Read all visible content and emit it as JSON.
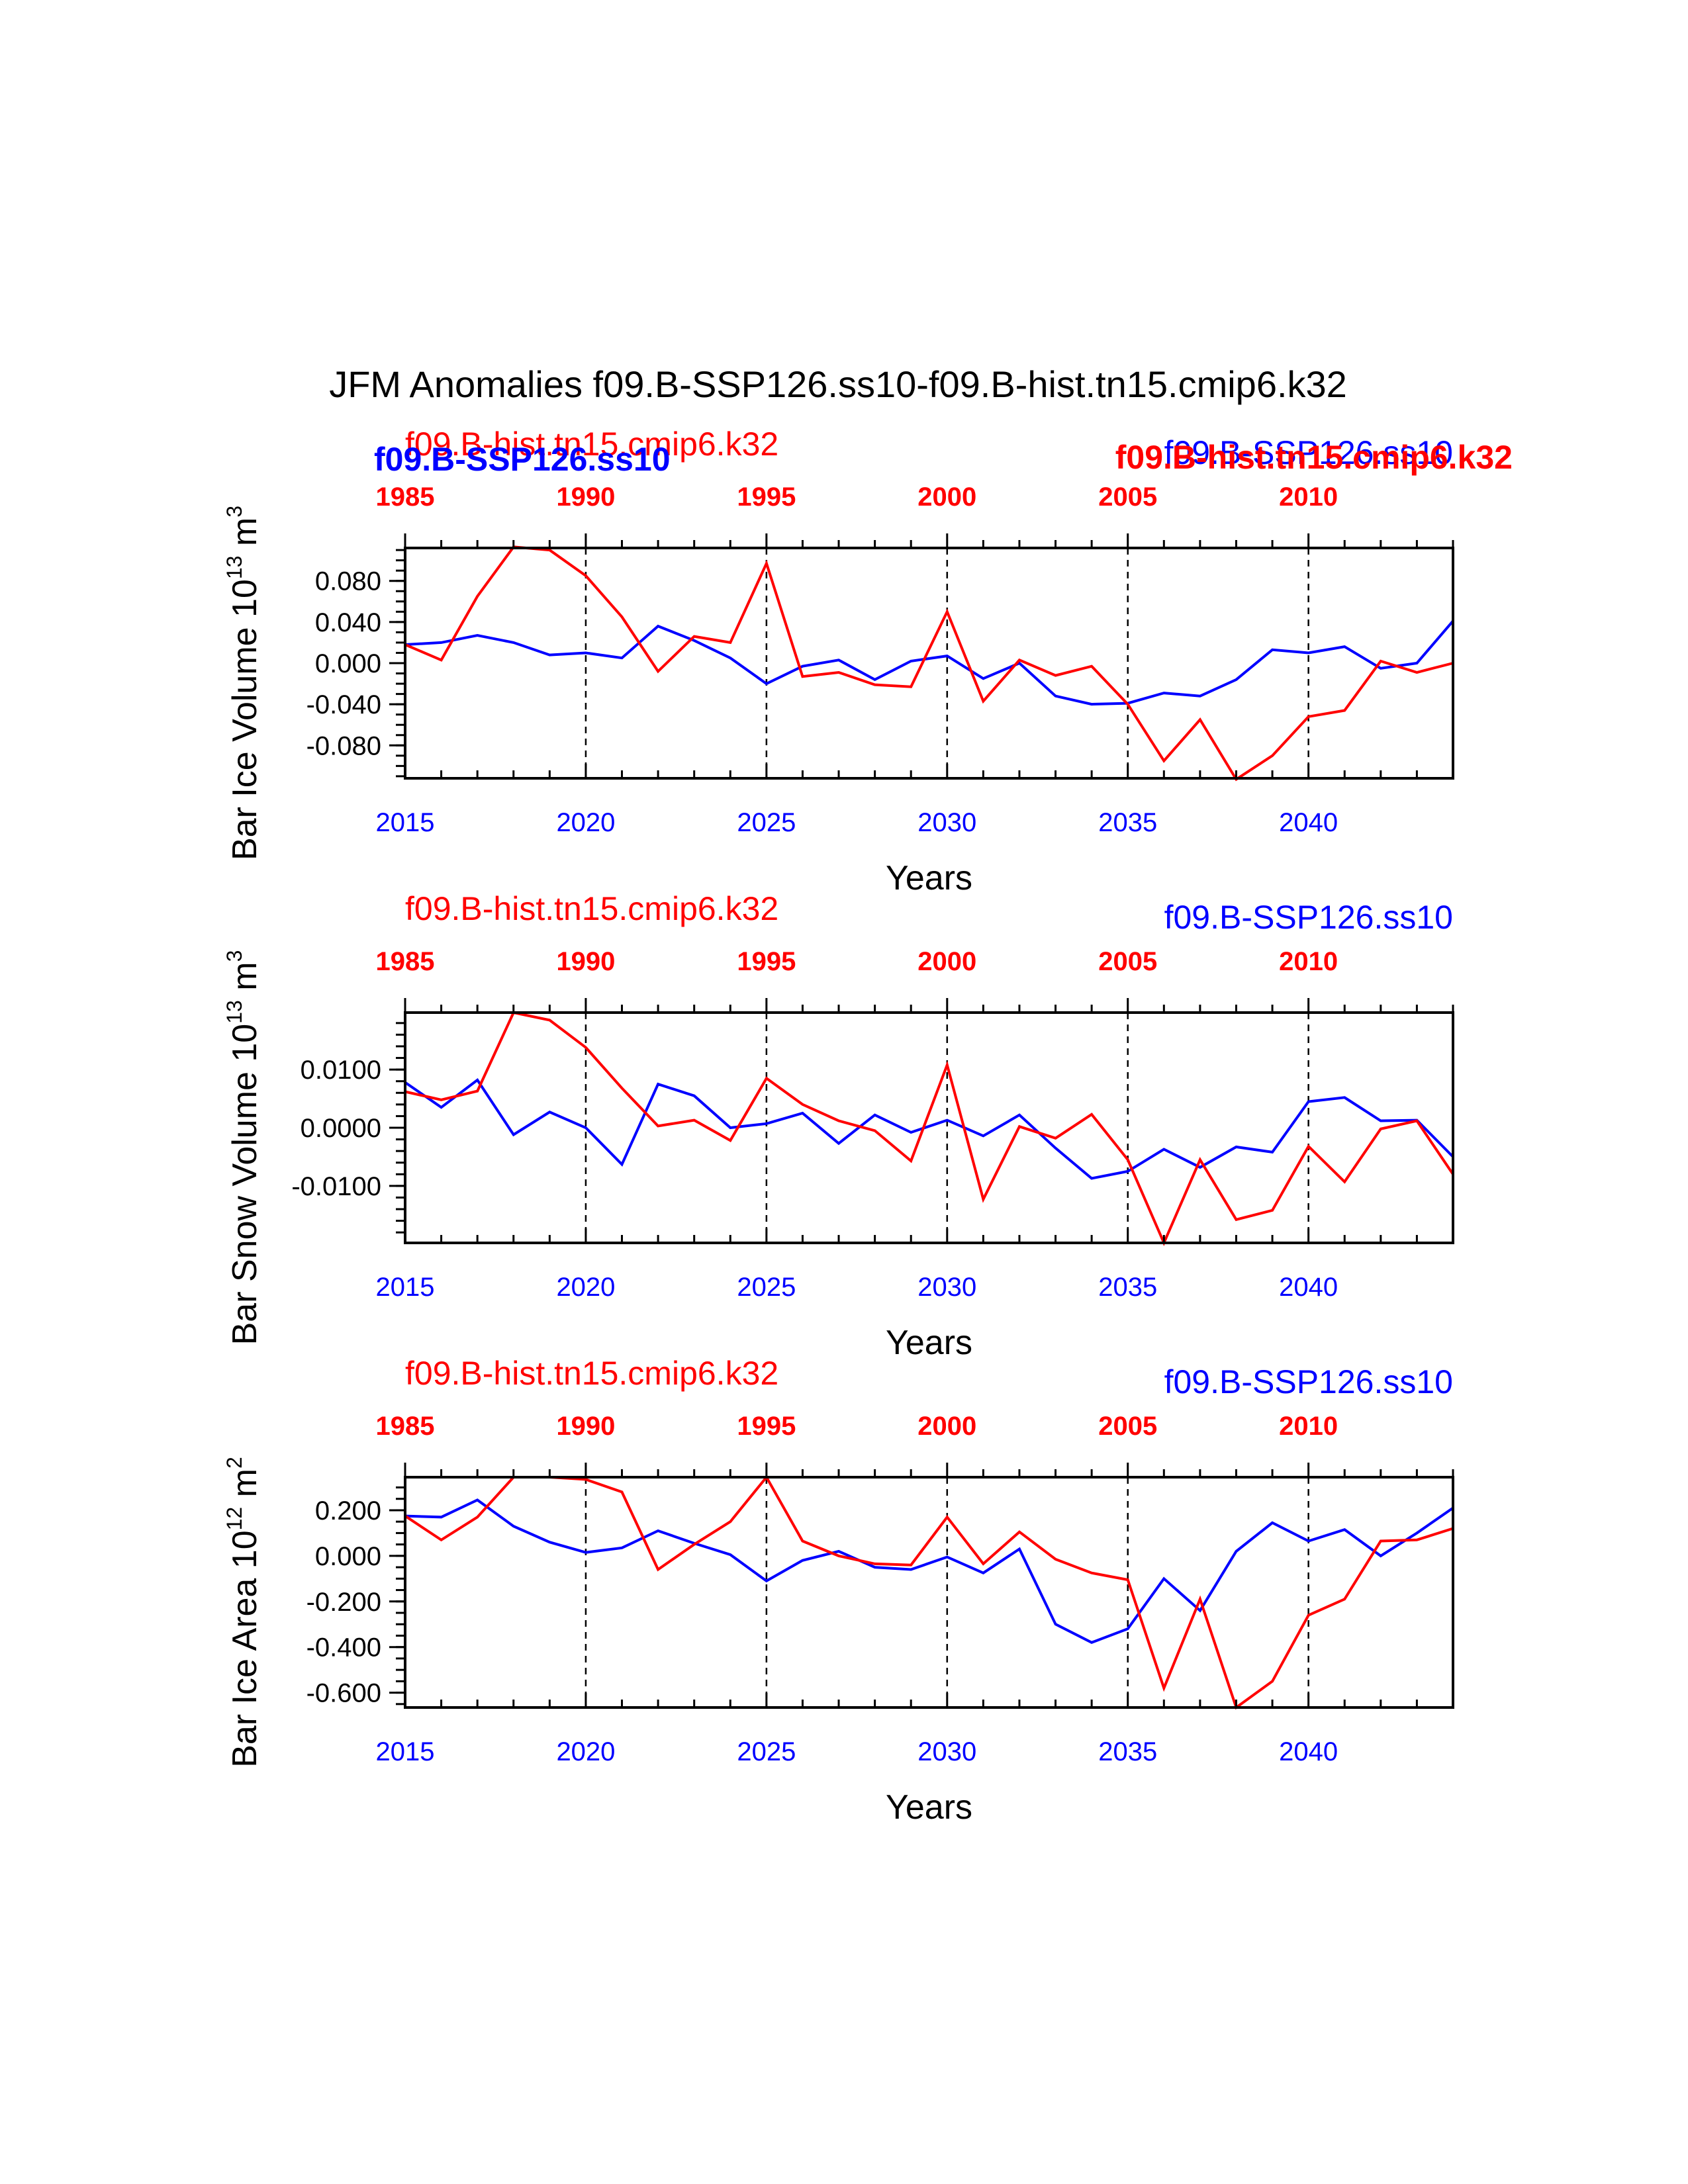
{
  "title": "JFM Anomalies f09.B-SSP126.ss10-f09.B-hist.tn15.cmip6.k32",
  "colors": {
    "ssp": "#0000ff",
    "hist": "#ff0000",
    "axis": "#000000"
  },
  "chart_data": [
    {
      "type": "line",
      "ylabel_main": "Bar Ice Volume 10",
      "ylabel_exp": "13",
      "ylabel_unit": " m",
      "ylabel_unit_exp": "3",
      "xlabel": "Years",
      "ylim": [
        -0.112,
        0.112
      ],
      "yticks": [
        -0.08,
        -0.04,
        0.0,
        0.04,
        0.08
      ],
      "ytick_labels": [
        "-0.080",
        "-0.040",
        "0.000",
        "0.040",
        "0.080"
      ],
      "yminor_step": 0.01,
      "bottom_axis": {
        "range": [
          2015,
          2044
        ],
        "ticks": [
          2015,
          2020,
          2025,
          2030,
          2035,
          2040
        ],
        "labels": [
          "2015",
          "2020",
          "2025",
          "2030",
          "2035",
          "2040"
        ]
      },
      "top_axis": {
        "range": [
          1985,
          2014
        ],
        "ticks": [
          1985,
          1990,
          1995,
          2000,
          2005,
          2010
        ],
        "labels": [
          "1985",
          "1990",
          "1995",
          "2000",
          "2005",
          "2010"
        ]
      },
      "legend_top_left": {
        "text": "f09.B-hist.tn15.cmip6.k32",
        "color": "#ff0000"
      },
      "legend_top_right": {
        "text": "f09.B-SSP126.ss10",
        "color": "#0000ff"
      },
      "overlay_left": {
        "text": "f09.B-SSP126.ss10",
        "color": "#0000ff"
      },
      "overlay_right": {
        "text": "f09.B-hist.tn15.cmip6.k32",
        "color": "#ff0000"
      },
      "series": [
        {
          "name": "f09.B-SSP126.ss10",
          "color": "#0000ff",
          "x": [
            2015,
            2016,
            2017,
            2018,
            2019,
            2020,
            2021,
            2022,
            2023,
            2024,
            2025,
            2026,
            2027,
            2028,
            2029,
            2030,
            2031,
            2032,
            2033,
            2034,
            2035,
            2036,
            2037,
            2038,
            2039,
            2040,
            2041,
            2042,
            2043,
            2044
          ],
          "values": [
            0.018,
            0.02,
            0.027,
            0.02,
            0.008,
            0.01,
            0.005,
            0.036,
            0.022,
            0.005,
            -0.02,
            -0.003,
            0.003,
            -0.016,
            0.002,
            0.007,
            -0.015,
            0.0,
            -0.032,
            -0.04,
            -0.039,
            -0.029,
            -0.032,
            -0.016,
            0.013,
            0.01,
            0.016,
            -0.005,
            0.0,
            0.041
          ]
        },
        {
          "name": "f09.B-hist.tn15.cmip6.k32",
          "color": "#ff0000",
          "x": [
            2015,
            2016,
            2017,
            2018,
            2019,
            2020,
            2021,
            2022,
            2023,
            2024,
            2025,
            2026,
            2027,
            2028,
            2029,
            2030,
            2031,
            2032,
            2033,
            2034,
            2035,
            2036,
            2037,
            2038,
            2039,
            2040,
            2041,
            2042,
            2043,
            2044
          ],
          "values": [
            0.018,
            0.003,
            0.065,
            0.113,
            0.11,
            0.085,
            0.045,
            -0.008,
            0.026,
            0.02,
            0.097,
            -0.013,
            -0.009,
            -0.021,
            -0.023,
            0.05,
            -0.037,
            0.003,
            -0.012,
            -0.003,
            -0.04,
            -0.095,
            -0.055,
            -0.113,
            -0.09,
            -0.052,
            -0.046,
            0.002,
            -0.009,
            0.0
          ]
        }
      ]
    },
    {
      "type": "line",
      "ylabel_main": "Bar Snow Volume 10",
      "ylabel_exp": "13",
      "ylabel_unit": " m",
      "ylabel_unit_exp": "3",
      "xlabel": "Years",
      "ylim": [
        -0.0198,
        0.0198
      ],
      "yticks": [
        -0.01,
        0.0,
        0.01
      ],
      "ytick_labels": [
        "-0.0100",
        "0.0000",
        "0.0100"
      ],
      "yminor_step": 0.002,
      "bottom_axis": {
        "range": [
          2015,
          2044
        ],
        "ticks": [
          2015,
          2020,
          2025,
          2030,
          2035,
          2040
        ],
        "labels": [
          "2015",
          "2020",
          "2025",
          "2030",
          "2035",
          "2040"
        ]
      },
      "top_axis": {
        "range": [
          1985,
          2014
        ],
        "ticks": [
          1985,
          1990,
          1995,
          2000,
          2005,
          2010
        ],
        "labels": [
          "1985",
          "1990",
          "1995",
          "2000",
          "2005",
          "2010"
        ]
      },
      "legend_top_left": {
        "text": "f09.B-hist.tn15.cmip6.k32",
        "color": "#ff0000"
      },
      "legend_top_right": {
        "text": "f09.B-SSP126.ss10",
        "color": "#0000ff"
      },
      "series": [
        {
          "name": "f09.B-SSP126.ss10",
          "color": "#0000ff",
          "x": [
            2015,
            2016,
            2017,
            2018,
            2019,
            2020,
            2021,
            2022,
            2023,
            2024,
            2025,
            2026,
            2027,
            2028,
            2029,
            2030,
            2031,
            2032,
            2033,
            2034,
            2035,
            2036,
            2037,
            2038,
            2039,
            2040,
            2041,
            2042,
            2043,
            2044
          ],
          "values": [
            0.0078,
            0.0035,
            0.0082,
            -0.0012,
            0.0027,
            0.0,
            -0.0063,
            0.0075,
            0.0055,
            0.0,
            0.0007,
            0.0025,
            -0.0027,
            0.0022,
            -0.0008,
            0.0013,
            -0.0014,
            0.0022,
            -0.0035,
            -0.0087,
            -0.0075,
            -0.0037,
            -0.0068,
            -0.0033,
            -0.0042,
            0.0045,
            0.0052,
            0.0012,
            0.0013,
            -0.005
          ]
        },
        {
          "name": "f09.B-hist.tn15.cmip6.k32",
          "color": "#ff0000",
          "x": [
            2015,
            2016,
            2017,
            2018,
            2019,
            2020,
            2021,
            2022,
            2023,
            2024,
            2025,
            2026,
            2027,
            2028,
            2029,
            2030,
            2031,
            2032,
            2033,
            2034,
            2035,
            2036,
            2037,
            2038,
            2039,
            2040,
            2041,
            2042,
            2043,
            2044
          ],
          "values": [
            0.0062,
            0.0048,
            0.0063,
            0.0198,
            0.0185,
            0.0138,
            0.0068,
            0.0003,
            0.0013,
            -0.0022,
            0.0085,
            0.004,
            0.0012,
            -0.0005,
            -0.0057,
            0.0108,
            -0.0123,
            0.0002,
            -0.0018,
            0.0023,
            -0.0055,
            -0.0198,
            -0.0055,
            -0.0158,
            -0.0142,
            -0.0032,
            -0.0093,
            -0.0002,
            0.0012,
            -0.008
          ]
        }
      ]
    },
    {
      "type": "line",
      "ylabel_main": "Bar Ice Area 10",
      "ylabel_exp": "12",
      "ylabel_unit": " m",
      "ylabel_unit_exp": "2",
      "xlabel": "Years",
      "ylim": [
        -0.665,
        0.345
      ],
      "yticks": [
        -0.6,
        -0.4,
        -0.2,
        0.0,
        0.2
      ],
      "ytick_labels": [
        "-0.600",
        "-0.400",
        "-0.200",
        "0.000",
        "0.200"
      ],
      "yminor_step": 0.05,
      "bottom_axis": {
        "range": [
          2015,
          2044
        ],
        "ticks": [
          2015,
          2020,
          2025,
          2030,
          2035,
          2040
        ],
        "labels": [
          "2015",
          "2020",
          "2025",
          "2030",
          "2035",
          "2040"
        ]
      },
      "top_axis": {
        "range": [
          1985,
          2014
        ],
        "ticks": [
          1985,
          1990,
          1995,
          2000,
          2005,
          2010
        ],
        "labels": [
          "1985",
          "1990",
          "1995",
          "2000",
          "2005",
          "2010"
        ]
      },
      "legend_top_left": {
        "text": "f09.B-hist.tn15.cmip6.k32",
        "color": "#ff0000"
      },
      "legend_top_right": {
        "text": "f09.B-SSP126.ss10",
        "color": "#0000ff"
      },
      "series": [
        {
          "name": "f09.B-SSP126.ss10",
          "color": "#0000ff",
          "x": [
            2015,
            2016,
            2017,
            2018,
            2019,
            2020,
            2021,
            2022,
            2023,
            2024,
            2025,
            2026,
            2027,
            2028,
            2029,
            2030,
            2031,
            2032,
            2033,
            2034,
            2035,
            2036,
            2037,
            2038,
            2039,
            2040,
            2041,
            2042,
            2043,
            2044
          ],
          "values": [
            0.175,
            0.17,
            0.245,
            0.13,
            0.06,
            0.015,
            0.035,
            0.11,
            0.055,
            0.005,
            -0.11,
            -0.02,
            0.02,
            -0.05,
            -0.06,
            -0.005,
            -0.075,
            0.03,
            -0.3,
            -0.38,
            -0.32,
            -0.1,
            -0.24,
            0.02,
            0.145,
            0.065,
            0.115,
            0.0,
            0.1,
            0.21
          ]
        },
        {
          "name": "f09.B-hist.tn15.cmip6.k32",
          "color": "#ff0000",
          "x": [
            2015,
            2016,
            2017,
            2018,
            2019,
            2020,
            2021,
            2022,
            2023,
            2024,
            2025,
            2026,
            2027,
            2028,
            2029,
            2030,
            2031,
            2032,
            2033,
            2034,
            2035,
            2036,
            2037,
            2038,
            2039,
            2040,
            2041,
            2042,
            2043,
            2044
          ],
          "values": [
            0.175,
            0.07,
            0.17,
            0.345,
            0.345,
            0.335,
            0.28,
            -0.06,
            0.05,
            0.15,
            0.345,
            0.065,
            0.0,
            -0.035,
            -0.04,
            0.17,
            -0.035,
            0.105,
            -0.015,
            -0.075,
            -0.105,
            -0.58,
            -0.19,
            -0.665,
            -0.55,
            -0.26,
            -0.19,
            0.065,
            0.07,
            0.12
          ]
        }
      ]
    }
  ]
}
